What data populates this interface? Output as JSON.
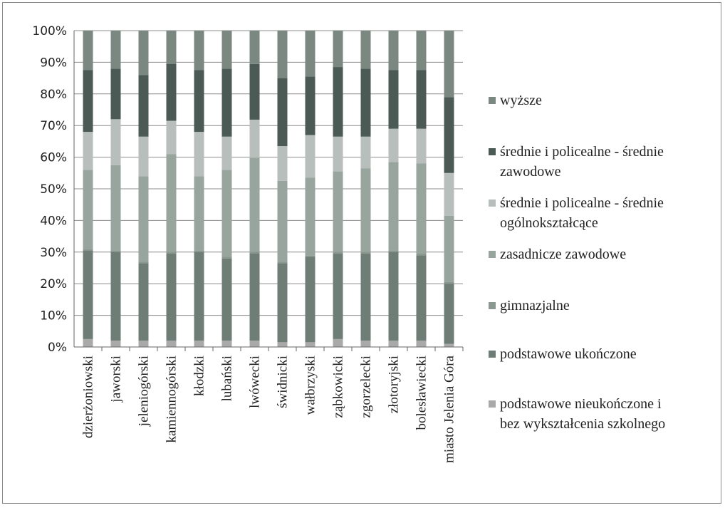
{
  "chart_data": {
    "type": "bar",
    "stacked": true,
    "percent": true,
    "categories": [
      "dzierżoniowski",
      "jaworski",
      "jeleniogórski",
      "kamiennogórski",
      "kłodzki",
      "lubański",
      "lwówecki",
      "świdnicki",
      "wałbrzyski",
      "ząbkowicki",
      "zgorzelecki",
      "złotoryjski",
      "bolesławiecki",
      "miasto Jelenia Góra"
    ],
    "ylim": [
      0,
      100
    ],
    "yticks": [
      "0%",
      "10%",
      "20%",
      "30%",
      "40%",
      "50%",
      "60%",
      "70%",
      "80%",
      "90%",
      "100%"
    ],
    "grid": true,
    "legend_position": "right",
    "series": [
      {
        "name": "podstawowe nieukończone i bez wykształcenia szkolnego",
        "color": "#a9a9a9",
        "values": [
          2.5,
          2,
          2,
          2,
          2,
          2,
          2,
          1.5,
          1.5,
          2.5,
          2,
          2,
          2,
          1
        ]
      },
      {
        "name": "podstawowe ukończone",
        "color": "#6f7d77",
        "values": [
          28,
          28,
          24.5,
          27.5,
          28,
          26,
          27.5,
          25,
          27,
          27,
          27.5,
          28,
          27,
          19
        ]
      },
      {
        "name": "gimnazjalne",
        "color": "#8a9890",
        "values": [
          0.5,
          0.5,
          0.5,
          0.5,
          0.5,
          0.5,
          0.5,
          0.5,
          0.5,
          0.5,
          0.5,
          0.5,
          0.5,
          0.5
        ]
      },
      {
        "name": "zasadnicze zawodowe",
        "color": "#98a59e",
        "values": [
          25,
          27,
          27,
          31,
          23.5,
          27.5,
          29.5,
          25.5,
          24.5,
          25.5,
          26.5,
          28,
          28.5,
          21
        ]
      },
      {
        "name": "średnie i policealne - średnie ogólnokształcące",
        "color": "#b8bebb",
        "values": [
          12,
          14.5,
          12.5,
          10.5,
          14,
          10.5,
          12,
          11,
          13.5,
          11,
          10,
          10.5,
          11,
          13.5
        ]
      },
      {
        "name": "średnie i policealne - średnie zawodowe",
        "color": "#4b5a55",
        "values": [
          19.5,
          16,
          19.5,
          18,
          19.5,
          21.5,
          17.5,
          21.5,
          18.5,
          22,
          21.5,
          18.5,
          18.5,
          24
        ]
      },
      {
        "name": "wyższe",
        "color": "#7b8882",
        "values": [
          12.5,
          12,
          14,
          10.5,
          12.5,
          12,
          10.5,
          15,
          14.5,
          11.5,
          12,
          12.5,
          12.5,
          21
        ]
      }
    ],
    "legend_order": [
      "wyższe",
      "średnie i policealne - średnie zawodowe",
      "średnie i policealne - średnie ogólnokształcące",
      "zasadnicze zawodowe",
      "gimnazjalne",
      "podstawowe ukończone",
      "podstawowe nieukończone i bez wykształcenia szkolnego"
    ],
    "legend_lines": {
      "wyższe": [
        "wyższe"
      ],
      "średnie i policealne - średnie zawodowe": [
        "średnie i policealne - średnie",
        "zawodowe"
      ],
      "średnie i policealne - średnie ogólnokształcące": [
        "średnie i policealne - średnie",
        "ogólnokształcące"
      ],
      "zasadnicze zawodowe": [
        "zasadnicze zawodowe"
      ],
      "gimnazjalne": [
        "gimnazjalne"
      ],
      "podstawowe ukończone": [
        "podstawowe ukończone"
      ],
      "podstawowe nieukończone i bez wykształcenia szkolnego": [
        "podstawowe nieukończone i",
        "bez wykształcenia szkolnego"
      ]
    }
  }
}
